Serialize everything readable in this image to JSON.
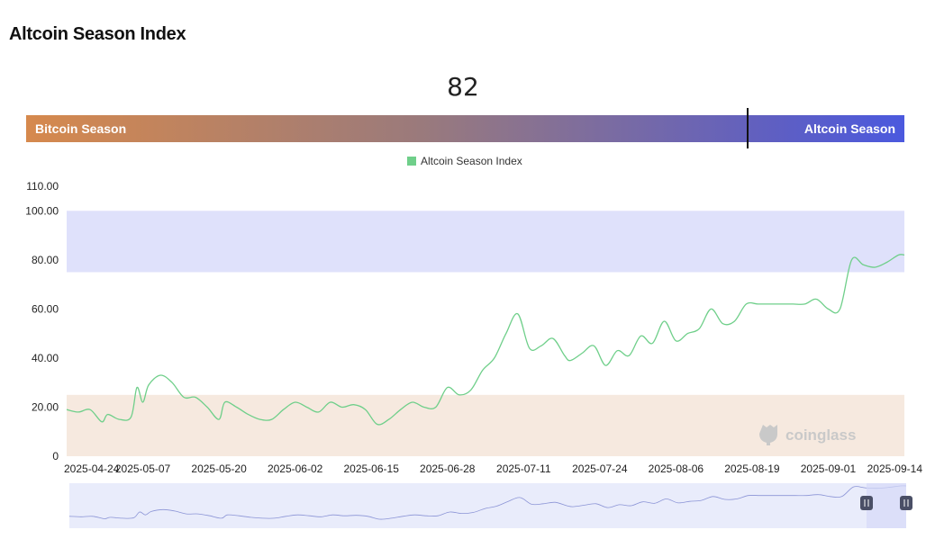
{
  "page": {
    "title": "Altcoin Season Index",
    "current_value": "82",
    "season_bar": {
      "left_label": "Bitcoin Season",
      "right_label": "Altcoin Season",
      "marker_value": 82
    },
    "legend": "Altcoin Season Index",
    "watermark": "coinglass",
    "colors": {
      "line": "#6fcf8a",
      "altcoin_zone": "#dfe1fb",
      "bitcoin_zone": "#f6e9df",
      "bar_left": "#d6894d",
      "bar_right": "#4b59de"
    }
  },
  "chart_data": {
    "type": "line",
    "title": "Altcoin Season Index",
    "ylim": [
      0,
      110
    ],
    "y_ticks": [
      "110.00",
      "100.00",
      "80.00",
      "60.00",
      "40.00",
      "20.00",
      "0"
    ],
    "x_ticks": [
      "2025-04-24",
      "2025-05-07",
      "2025-05-20",
      "2025-06-02",
      "2025-06-15",
      "2025-06-28",
      "2025-07-11",
      "2025-07-24",
      "2025-08-06",
      "2025-08-19",
      "2025-09-01",
      "2025-09-14"
    ],
    "bands": [
      {
        "from": 75,
        "to": 100,
        "color": "#dfe1fb"
      },
      {
        "from": 0,
        "to": 25,
        "color": "#f6e9df"
      }
    ],
    "series": [
      {
        "name": "Altcoin Season Index",
        "color": "#6fcf8a",
        "x": [
          "2025-04-24",
          "2025-04-26",
          "2025-04-28",
          "2025-04-30",
          "2025-05-01",
          "2025-05-03",
          "2025-05-05",
          "2025-05-06",
          "2025-05-07",
          "2025-05-08",
          "2025-05-10",
          "2025-05-12",
          "2025-05-14",
          "2025-05-16",
          "2025-05-18",
          "2025-05-20",
          "2025-05-21",
          "2025-05-23",
          "2025-05-25",
          "2025-05-27",
          "2025-05-29",
          "2025-05-31",
          "2025-06-02",
          "2025-06-04",
          "2025-06-06",
          "2025-06-08",
          "2025-06-10",
          "2025-06-12",
          "2025-06-14",
          "2025-06-16",
          "2025-06-18",
          "2025-06-20",
          "2025-06-22",
          "2025-06-24",
          "2025-06-26",
          "2025-06-28",
          "2025-06-30",
          "2025-07-02",
          "2025-07-04",
          "2025-07-06",
          "2025-07-08",
          "2025-07-10",
          "2025-07-12",
          "2025-07-14",
          "2025-07-16",
          "2025-07-18",
          "2025-07-19",
          "2025-07-21",
          "2025-07-23",
          "2025-07-25",
          "2025-07-27",
          "2025-07-29",
          "2025-07-31",
          "2025-08-02",
          "2025-08-04",
          "2025-08-06",
          "2025-08-08",
          "2025-08-10",
          "2025-08-12",
          "2025-08-14",
          "2025-08-16",
          "2025-08-18",
          "2025-08-20",
          "2025-08-22",
          "2025-08-24",
          "2025-08-26",
          "2025-08-28",
          "2025-08-30",
          "2025-09-01",
          "2025-09-03",
          "2025-09-05",
          "2025-09-07",
          "2025-09-09",
          "2025-09-11",
          "2025-09-13",
          "2025-09-14"
        ],
        "y": [
          19,
          18,
          19,
          14,
          17,
          15,
          16,
          28,
          22,
          29,
          33,
          30,
          24,
          24,
          20,
          15,
          22,
          20,
          17,
          15,
          15,
          19,
          22,
          20,
          18,
          22,
          20,
          21,
          19,
          13,
          15,
          19,
          22,
          20,
          20,
          28,
          25,
          27,
          35,
          40,
          50,
          58,
          44,
          45,
          48,
          41,
          39,
          42,
          45,
          37,
          43,
          41,
          49,
          46,
          55,
          47,
          50,
          52,
          60,
          54,
          55,
          62,
          62,
          62,
          62,
          62,
          62,
          64,
          60,
          60,
          80,
          78,
          77,
          79,
          82,
          82
        ]
      }
    ]
  }
}
